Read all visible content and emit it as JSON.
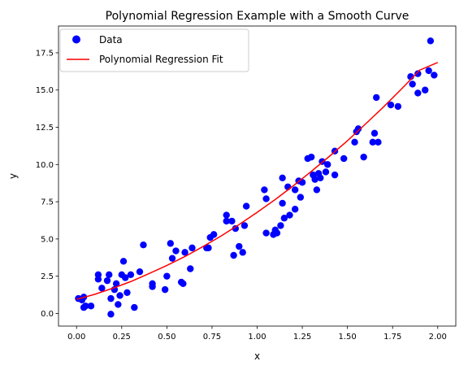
{
  "chart_data": {
    "type": "scatter",
    "title": "Polynomial Regression Example with a Smooth Curve",
    "xlabel": "x",
    "ylabel": "y",
    "xlim": [
      -0.1,
      2.1
    ],
    "ylim": [
      -0.85,
      19.3
    ],
    "x_ticks": [
      0.0,
      0.25,
      0.5,
      0.75,
      1.0,
      1.25,
      1.5,
      1.75,
      2.0
    ],
    "x_tick_labels": [
      "0.00",
      "0.25",
      "0.50",
      "0.75",
      "1.00",
      "1.25",
      "1.50",
      "1.75",
      "2.00"
    ],
    "y_ticks": [
      0.0,
      2.5,
      5.0,
      7.5,
      10.0,
      12.5,
      15.0,
      17.5
    ],
    "y_tick_labels": [
      "0.0",
      "2.5",
      "5.0",
      "7.5",
      "10.0",
      "12.5",
      "15.0",
      "17.5"
    ],
    "grid": false,
    "legend_position": "top-left",
    "colors": {
      "data": "#0000ff",
      "fit": "#ff0000"
    },
    "series": [
      {
        "name": "Data",
        "kind": "scatter",
        "points": [
          [
            0.01,
            1.0
          ],
          [
            0.03,
            0.9
          ],
          [
            0.04,
            0.4
          ],
          [
            0.04,
            1.1
          ],
          [
            0.05,
            0.5
          ],
          [
            0.08,
            0.5
          ],
          [
            0.12,
            2.6
          ],
          [
            0.12,
            2.3
          ],
          [
            0.14,
            1.7
          ],
          [
            0.17,
            2.2
          ],
          [
            0.18,
            2.6
          ],
          [
            0.19,
            1.0
          ],
          [
            0.19,
            -0.05
          ],
          [
            0.21,
            1.6
          ],
          [
            0.22,
            2.0
          ],
          [
            0.23,
            0.6
          ],
          [
            0.24,
            1.2
          ],
          [
            0.25,
            2.6
          ],
          [
            0.26,
            3.5
          ],
          [
            0.27,
            2.4
          ],
          [
            0.28,
            1.4
          ],
          [
            0.3,
            2.6
          ],
          [
            0.32,
            0.4
          ],
          [
            0.35,
            2.8
          ],
          [
            0.37,
            4.6
          ],
          [
            0.42,
            1.8
          ],
          [
            0.42,
            2.0
          ],
          [
            0.49,
            1.6
          ],
          [
            0.5,
            2.5
          ],
          [
            0.52,
            4.7
          ],
          [
            0.53,
            3.7
          ],
          [
            0.55,
            4.2
          ],
          [
            0.58,
            2.1
          ],
          [
            0.59,
            2.0
          ],
          [
            0.6,
            4.1
          ],
          [
            0.63,
            3.0
          ],
          [
            0.64,
            4.4
          ],
          [
            0.72,
            4.4
          ],
          [
            0.73,
            4.4
          ],
          [
            0.74,
            5.1
          ],
          [
            0.76,
            5.3
          ],
          [
            0.83,
            6.2
          ],
          [
            0.83,
            6.6
          ],
          [
            0.86,
            6.2
          ],
          [
            0.87,
            3.9
          ],
          [
            0.88,
            5.7
          ],
          [
            0.9,
            4.5
          ],
          [
            0.92,
            4.1
          ],
          [
            0.93,
            5.9
          ],
          [
            0.94,
            7.2
          ],
          [
            1.04,
            8.3
          ],
          [
            1.05,
            5.4
          ],
          [
            1.05,
            7.7
          ],
          [
            1.09,
            5.3
          ],
          [
            1.1,
            5.6
          ],
          [
            1.11,
            5.4
          ],
          [
            1.13,
            5.9
          ],
          [
            1.14,
            9.1
          ],
          [
            1.14,
            7.4
          ],
          [
            1.15,
            6.4
          ],
          [
            1.17,
            8.5
          ],
          [
            1.18,
            6.6
          ],
          [
            1.21,
            7.0
          ],
          [
            1.21,
            8.3
          ],
          [
            1.23,
            8.9
          ],
          [
            1.24,
            7.8
          ],
          [
            1.25,
            8.8
          ],
          [
            1.28,
            10.4
          ],
          [
            1.3,
            10.5
          ],
          [
            1.31,
            9.3
          ],
          [
            1.32,
            9.0
          ],
          [
            1.33,
            8.3
          ],
          [
            1.34,
            9.4
          ],
          [
            1.35,
            9.1
          ],
          [
            1.36,
            10.2
          ],
          [
            1.38,
            9.5
          ],
          [
            1.39,
            10.0
          ],
          [
            1.43,
            9.3
          ],
          [
            1.43,
            10.9
          ],
          [
            1.48,
            10.4
          ],
          [
            1.54,
            11.5
          ],
          [
            1.55,
            12.2
          ],
          [
            1.56,
            12.4
          ],
          [
            1.59,
            10.5
          ],
          [
            1.64,
            11.5
          ],
          [
            1.65,
            12.1
          ],
          [
            1.66,
            14.5
          ],
          [
            1.67,
            11.5
          ],
          [
            1.74,
            14.0
          ],
          [
            1.78,
            13.9
          ],
          [
            1.85,
            15.9
          ],
          [
            1.86,
            15.4
          ],
          [
            1.89,
            16.1
          ],
          [
            1.89,
            14.8
          ],
          [
            1.93,
            15.0
          ],
          [
            1.95,
            16.3
          ],
          [
            1.96,
            18.3
          ],
          [
            1.98,
            16.0
          ]
        ]
      },
      {
        "name": "Polynomial Regression Fit",
        "kind": "line",
        "x": [
          0.0,
          0.1,
          0.2,
          0.3,
          0.4,
          0.5,
          0.6,
          0.7,
          0.8,
          0.9,
          1.0,
          1.1,
          1.2,
          1.3,
          1.4,
          1.5,
          1.6,
          1.7,
          1.8,
          1.9,
          2.0
        ],
        "y": [
          0.95,
          1.28,
          1.69,
          2.14,
          2.67,
          3.22,
          3.82,
          4.49,
          5.2,
          5.97,
          6.79,
          7.65,
          8.57,
          9.54,
          10.55,
          11.6,
          12.72,
          13.87,
          15.08,
          16.34,
          16.85
        ]
      }
    ]
  }
}
